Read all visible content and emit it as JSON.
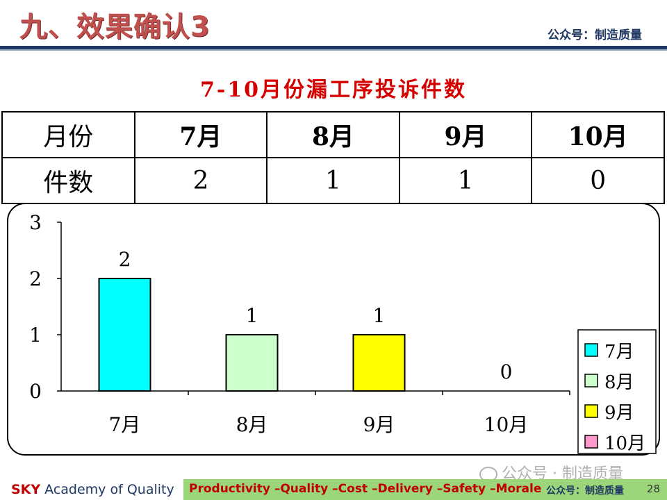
{
  "header": {
    "title": "九、效果确认3",
    "account": "公众号：制造质量"
  },
  "section_title": "7-10月份漏工序投诉件数",
  "table": {
    "headers": [
      "月份",
      "7月",
      "8月",
      "9月",
      "10月"
    ],
    "row": [
      "件数",
      "2",
      "1",
      "1",
      "0"
    ]
  },
  "chart_data": {
    "type": "bar",
    "categories": [
      "7月",
      "8月",
      "9月",
      "10月"
    ],
    "values": [
      2,
      1,
      1,
      0
    ],
    "colors": [
      "#00ffff",
      "#ccffcc",
      "#ffff00",
      "#ff99cc"
    ],
    "ylim": [
      0,
      3
    ],
    "yticks": [
      "0",
      "1",
      "2",
      "3"
    ],
    "legend": [
      "7月",
      "8月",
      "9月",
      "10月"
    ],
    "legend_position": "right",
    "data_labels": [
      "2",
      "1",
      "1",
      "0"
    ]
  },
  "footer": {
    "brand": "SKY",
    "brand_rest": "Academy of Quality",
    "tagline": "Productivity –Quality –Cost –Delivery –Safety –Morale",
    "account": "公众号：制造质量",
    "page": "28"
  },
  "watermark": "公众号 · 制造质量"
}
